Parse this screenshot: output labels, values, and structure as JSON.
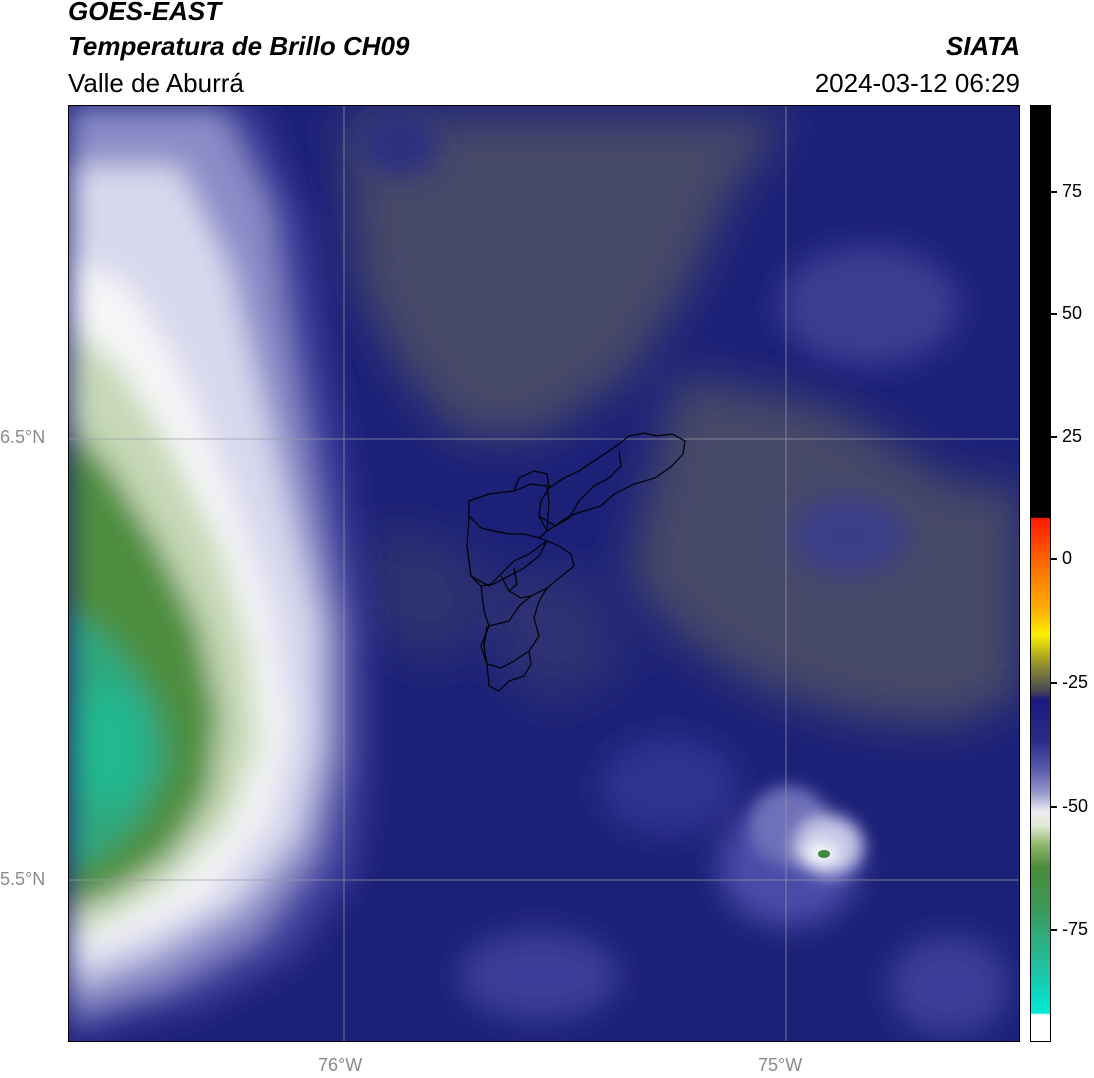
{
  "header": {
    "satellite": "GOES-EAST",
    "product": "Temperatura de Brillo CH09",
    "region": "Valle de Aburrá",
    "institution": "SIATA",
    "datetime": "2024-03-12 06:29"
  },
  "map": {
    "lat_labels": [
      "6.5°N",
      "5.5°N"
    ],
    "lon_labels": [
      "76°W",
      "75°W"
    ],
    "colors": {
      "deep_blue": "#1b1f78",
      "gray_olive": "#45486a",
      "lavender": "#8f90c4",
      "white": "#f4f4f6",
      "pale_green": "#c5d9b8",
      "green": "#4a8a3a",
      "teal": "#22b890"
    }
  },
  "colorbar": {
    "tick_labels": [
      "75",
      "50",
      "25",
      "0",
      "-25",
      "-50",
      "-75"
    ],
    "colors": [
      "#000000",
      "#ff1a00",
      "#ff8c00",
      "#ffee00",
      "#5a5a3a",
      "#1a1a80",
      "#ffffff",
      "#3f8f3a",
      "#00e5d0"
    ]
  }
}
